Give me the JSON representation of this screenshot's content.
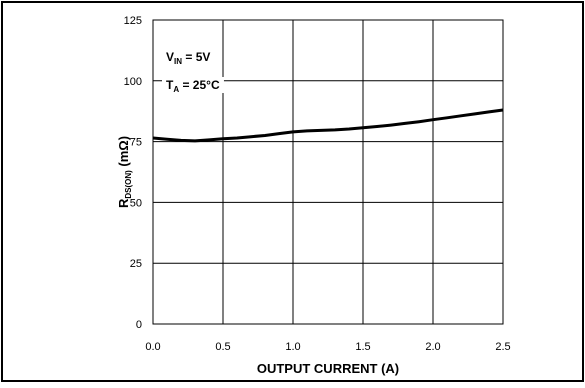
{
  "chart_data": {
    "type": "line",
    "title": "",
    "xlabel": "OUTPUT CURRENT (A)",
    "ylabel": {
      "main": "R",
      "sub": "DS(ON)",
      "unit": " (mΩ)"
    },
    "xlim": [
      0,
      2.5
    ],
    "ylim": [
      0,
      125
    ],
    "x_ticks": [
      "0.0",
      "0.5",
      "1.0",
      "1.5",
      "2.0",
      "2.5"
    ],
    "y_ticks": [
      "0",
      "25",
      "50",
      "75",
      "100",
      "125"
    ],
    "grid": true,
    "annotations": [
      {
        "main": "V",
        "sub": "IN",
        "rest": " = 5V"
      },
      {
        "main": "T",
        "sub": "A",
        "rest": " = 25°C"
      }
    ],
    "series": [
      {
        "color": "#000000",
        "x": [
          0.0,
          0.1,
          0.2,
          0.3,
          0.4,
          0.5,
          0.6,
          0.7,
          0.8,
          0.9,
          1.0,
          1.1,
          1.2,
          1.3,
          1.4,
          1.5,
          1.6,
          1.7,
          1.8,
          1.9,
          2.0,
          2.1,
          2.2,
          2.3,
          2.4,
          2.5
        ],
        "y": [
          76.5,
          76.0,
          75.5,
          75.3,
          75.7,
          76.2,
          76.5,
          77.0,
          77.5,
          78.3,
          79.0,
          79.4,
          79.6,
          79.8,
          80.2,
          80.7,
          81.2,
          81.8,
          82.5,
          83.2,
          84.0,
          84.8,
          85.6,
          86.4,
          87.2,
          88.0
        ]
      }
    ]
  }
}
